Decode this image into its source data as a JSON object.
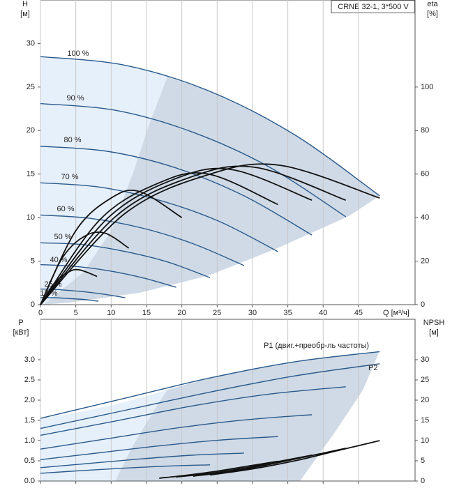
{
  "chart_data": [
    {
      "type": "line",
      "title": "CRNE 32-1, 3*500 V",
      "x_label": "Q [м³/ч]",
      "y_label": "H",
      "y_unit": "[м]",
      "y2_label": "eta",
      "y2_unit": "[%]",
      "xlim": [
        0,
        53
      ],
      "ylim": [
        0,
        35
      ],
      "y2lim": [
        0,
        140
      ],
      "xticks": [
        0,
        5,
        10,
        15,
        20,
        25,
        30,
        35,
        40,
        45
      ],
      "yticks": [
        0,
        5,
        10,
        15,
        20,
        25,
        30
      ],
      "y2ticks": [
        0,
        20,
        40,
        60,
        80,
        100
      ],
      "grid": "x",
      "series": [
        {
          "name": "100 %",
          "color": "#2a5a8c",
          "x": [
            0,
            12,
            24,
            36,
            48
          ],
          "values": [
            28.5,
            27.5,
            24.5,
            19.5,
            12.5
          ]
        },
        {
          "name": "90 %",
          "color": "#2a5a8c",
          "x": [
            0,
            10.8,
            21.6,
            32.4,
            43.2
          ],
          "values": [
            23.1,
            22.3,
            19.8,
            15.8,
            10.1
          ]
        },
        {
          "name": "80 %",
          "color": "#2a5a8c",
          "x": [
            0,
            9.6,
            19.2,
            28.8,
            38.4
          ],
          "values": [
            18.2,
            17.6,
            15.7,
            12.5,
            8
          ]
        },
        {
          "name": "70 %",
          "color": "#2a5a8c",
          "x": [
            0,
            8.4,
            16.8,
            25.2,
            33.6
          ],
          "values": [
            14,
            13.5,
            12,
            9.6,
            6.1
          ]
        },
        {
          "name": "60 %",
          "color": "#2a5a8c",
          "x": [
            0,
            7.2,
            14.4,
            21.6,
            28.8
          ],
          "values": [
            10.3,
            9.9,
            8.8,
            7,
            4.5
          ]
        },
        {
          "name": "50 %",
          "color": "#2a5a8c",
          "x": [
            0,
            6,
            12,
            18,
            24
          ],
          "values": [
            7.1,
            6.9,
            6.1,
            4.9,
            3.1
          ]
        },
        {
          "name": "40 %",
          "color": "#2a5a8c",
          "x": [
            0,
            4.8,
            9.6,
            14.4,
            19.2
          ],
          "values": [
            4.6,
            4.4,
            3.9,
            3.1,
            2
          ]
        },
        {
          "name": "25 %",
          "color": "#2a5a8c",
          "x": [
            0,
            3,
            6,
            9,
            12
          ],
          "values": [
            1.8,
            1.7,
            1.5,
            1.2,
            0.8
          ]
        },
        {
          "name": "17 %",
          "color": "#2a5a8c",
          "x": [
            0,
            2,
            4,
            6,
            8.2
          ],
          "values": [
            0.8,
            0.8,
            0.7,
            0.6,
            0.4
          ]
        },
        {
          "color": "#111111",
          "axis": "y2",
          "x": [
            0,
            12,
            24,
            34,
            48
          ],
          "values": [
            0,
            42,
            60,
            64,
            49
          ]
        },
        {
          "color": "#111111",
          "axis": "y2",
          "x": [
            0,
            10.8,
            21.6,
            30.6,
            43.2
          ],
          "values": [
            0,
            41,
            59,
            63,
            48
          ]
        },
        {
          "color": "#111111",
          "axis": "y2",
          "x": [
            0,
            9.6,
            19.2,
            27.2,
            38.4
          ],
          "values": [
            0,
            40,
            58,
            62,
            48
          ]
        },
        {
          "color": "#111111",
          "axis": "y2",
          "x": [
            0,
            8.4,
            16.8,
            23.8,
            33.6
          ],
          "values": [
            0,
            39,
            56,
            60,
            46
          ]
        },
        {
          "color": "#111111",
          "axis": "y2",
          "x": [
            0,
            5,
            10,
            14,
            20
          ],
          "values": [
            0,
            34,
            49,
            52,
            40
          ]
        },
        {
          "color": "#111111",
          "axis": "y2",
          "x": [
            0,
            3,
            6,
            9,
            12.5
          ],
          "values": [
            0,
            21,
            31,
            33,
            26
          ]
        },
        {
          "color": "#111111",
          "axis": "y2",
          "x": [
            0,
            2,
            4,
            5.5,
            8
          ],
          "values": [
            0,
            10,
            15,
            16,
            13
          ]
        }
      ]
    },
    {
      "type": "line",
      "y_label": "P",
      "y_unit": "[кВт]",
      "y2_label": "NPSH",
      "y2_unit": "[м]",
      "xlim": [
        0,
        53
      ],
      "ylim": [
        0,
        4
      ],
      "y2lim": [
        0,
        40
      ],
      "yticks": [
        {
          "value": 0,
          "label": "0.0"
        },
        0.5,
        {
          "value": 1,
          "label": "1.0"
        },
        1.5,
        {
          "value": 2,
          "label": "2.0"
        },
        2.5,
        {
          "value": 3,
          "label": "3.0"
        }
      ],
      "y2ticks": [
        0,
        5,
        10,
        15,
        20,
        25,
        30
      ],
      "series": [
        {
          "name": "P1 (двиг.+преобр-ль частоты)",
          "color": "#2a5a8c",
          "x": [
            0,
            12,
            24,
            36,
            48
          ],
          "values": [
            1.55,
            2.05,
            2.55,
            2.95,
            3.2
          ]
        },
        {
          "name": "P2",
          "color": "#2a5a8c",
          "x": [
            0,
            12,
            24,
            36,
            48
          ],
          "values": [
            1.3,
            1.75,
            2.2,
            2.6,
            2.9
          ]
        },
        {
          "color": "#2a5a8c",
          "x": [
            0,
            10.8,
            21.6,
            32.4,
            43.2
          ],
          "values": [
            1.13,
            1.49,
            1.86,
            2.15,
            2.33
          ]
        },
        {
          "color": "#2a5a8c",
          "x": [
            0,
            9.6,
            19.2,
            28.8,
            38.4
          ],
          "values": [
            0.79,
            1.05,
            1.31,
            1.51,
            1.64
          ]
        },
        {
          "color": "#2a5a8c",
          "x": [
            0,
            8.4,
            16.8,
            25.2,
            33.6
          ],
          "values": [
            0.53,
            0.7,
            0.87,
            1.01,
            1.1
          ]
        },
        {
          "color": "#2a5a8c",
          "x": [
            0,
            7.2,
            14.4,
            21.6,
            28.8
          ],
          "values": [
            0.33,
            0.44,
            0.55,
            0.64,
            0.69
          ]
        },
        {
          "color": "#2a5a8c",
          "x": [
            0,
            6,
            12,
            18,
            24
          ],
          "values": [
            0.19,
            0.26,
            0.32,
            0.37,
            0.4
          ]
        },
        {
          "color": "#111111",
          "axis": "y2",
          "x": [
            24,
            30,
            36,
            42,
            48
          ],
          "values": [
            1.5,
            3,
            5,
            7.5,
            10
          ]
        },
        {
          "color": "#111111",
          "axis": "y2",
          "x": [
            21.6,
            27,
            32.4,
            37.8,
            43.2
          ],
          "values": [
            1.2,
            2.4,
            4.1,
            6.1,
            8.1
          ]
        },
        {
          "color": "#111111",
          "axis": "y2",
          "x": [
            19.2,
            24,
            28.8,
            33.6,
            38.4
          ],
          "values": [
            1,
            1.9,
            3.2,
            4.8,
            6.4
          ]
        },
        {
          "color": "#111111",
          "axis": "y2",
          "x": [
            16.8,
            21,
            25.2,
            29.4,
            33.6
          ],
          "values": [
            0.7,
            1.5,
            2.5,
            3.7,
            4.9
          ]
        }
      ]
    }
  ]
}
